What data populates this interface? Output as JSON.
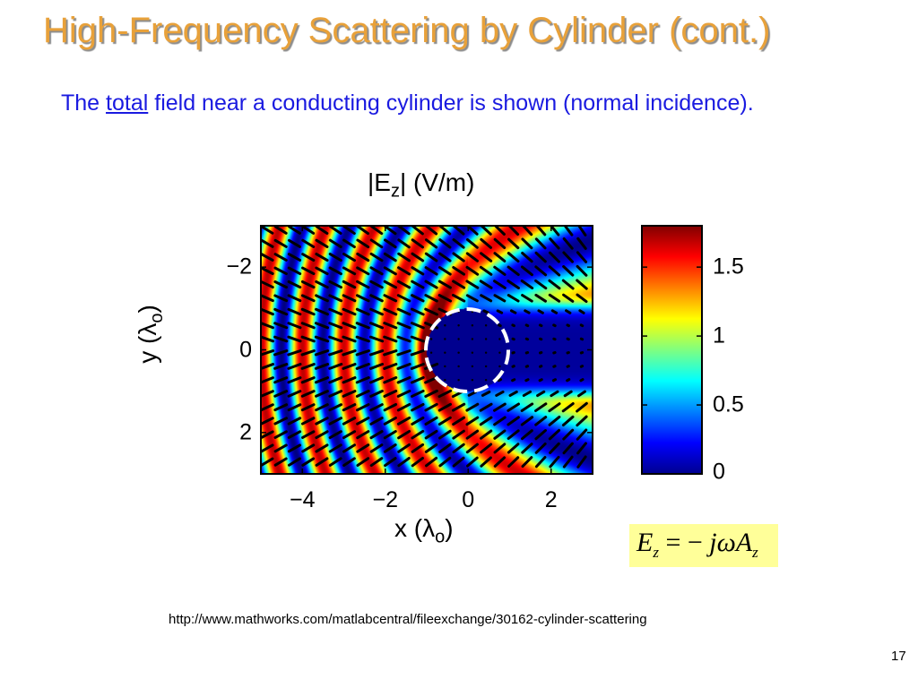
{
  "slide": {
    "title": "High-Frequency Scattering by Cylinder (cont.)",
    "subtitle_prefix": "The ",
    "subtitle_underlined": "total",
    "subtitle_suffix": " field near a conducting cylinder is shown (normal incidence).",
    "formula": {
      "lhs": "E",
      "lhs_sub": "z",
      "equals": " = − ",
      "rhs": "jωA",
      "rhs_sub": "z"
    },
    "source": "http://www.mathworks.com/matlabcentral/fileexchange/30162-cylinder-scattering",
    "page_number": "17"
  },
  "chart_data": {
    "type": "heatmap",
    "title": "|E",
    "title_sub": "z",
    "title_suffix": "| (V/m)",
    "xlabel": "x (λ",
    "xlabel_sub": "o",
    "xlabel_suffix": ")",
    "ylabel": "y (λ",
    "ylabel_sub": "o",
    "ylabel_suffix": ")",
    "xlim": [
      -5,
      3
    ],
    "ylim": [
      -3,
      3
    ],
    "y_reversed": true,
    "x_ticks": [
      {
        "value": -4,
        "label": "−4"
      },
      {
        "value": -2,
        "label": "−2"
      },
      {
        "value": 0,
        "label": "0"
      },
      {
        "value": 2,
        "label": "2"
      }
    ],
    "y_ticks": [
      {
        "value": -2,
        "label": "−2"
      },
      {
        "value": 0,
        "label": "0"
      },
      {
        "value": 2,
        "label": "2"
      }
    ],
    "colorbar": {
      "range": [
        0,
        1.8
      ],
      "colormap": "jet",
      "ticks": [
        {
          "value": 0,
          "label": "0"
        },
        {
          "value": 0.5,
          "label": "0.5"
        },
        {
          "value": 1,
          "label": "1"
        },
        {
          "value": 1.5,
          "label": "1.5"
        }
      ]
    },
    "cylinder": {
      "center": [
        0,
        0
      ],
      "radius": 1
    },
    "wavelength": 1,
    "overlay": "field arrows"
  }
}
